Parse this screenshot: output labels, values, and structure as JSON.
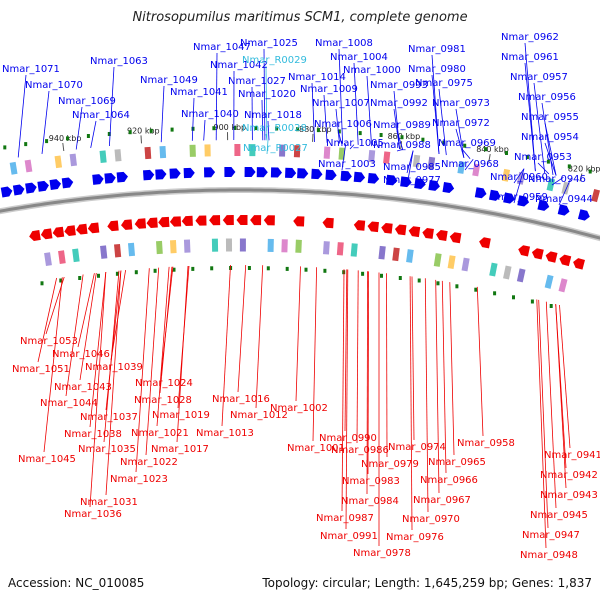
{
  "title": "Nitrosopumilus maritimus SCM1, complete genome",
  "accession_text": "Accession: NC_010085",
  "summary_text": "Topology: circular; Length: 1,645,259 bp; Genes: 1,837",
  "colors": {
    "forward": "#0000ee",
    "reverse": "#ee0000",
    "rna": "#33bbdd",
    "backbone": "#888888",
    "tick": "#117711"
  },
  "kbp_ticks": [
    {
      "label": "940 kbp"
    },
    {
      "label": "920 kbp"
    },
    {
      "label": "900 kbp"
    },
    {
      "label": "880 kbp"
    },
    {
      "label": "860 kbp"
    },
    {
      "label": "840 kbp"
    },
    {
      "label": "820 kbp"
    }
  ],
  "labels_top": [
    {
      "text": "Nmar_1071",
      "kind": "forward"
    },
    {
      "text": "Nmar_1070",
      "kind": "forward"
    },
    {
      "text": "Nmar_1069",
      "kind": "forward"
    },
    {
      "text": "Nmar_1064",
      "kind": "forward"
    },
    {
      "text": "Nmar_1063",
      "kind": "forward"
    },
    {
      "text": "Nmar_1049",
      "kind": "forward"
    },
    {
      "text": "Nmar_1047",
      "kind": "forward"
    },
    {
      "text": "Nmar_1042",
      "kind": "forward"
    },
    {
      "text": "Nmar_1041",
      "kind": "forward"
    },
    {
      "text": "Nmar_1040",
      "kind": "forward"
    },
    {
      "text": "Nmar_1025",
      "kind": "forward"
    },
    {
      "text": "Nmar_R0029",
      "kind": "rna"
    },
    {
      "text": "Nmar_1027",
      "kind": "forward"
    },
    {
      "text": "Nmar_1020",
      "kind": "forward"
    },
    {
      "text": "Nmar_1018",
      "kind": "forward"
    },
    {
      "text": "Nmar_R0028",
      "kind": "rna"
    },
    {
      "text": "Nmar_R0027",
      "kind": "rna"
    },
    {
      "text": "Nmar_1014",
      "kind": "forward"
    },
    {
      "text": "Nmar_1009",
      "kind": "forward"
    },
    {
      "text": "Nmar_1007",
      "kind": "forward"
    },
    {
      "text": "Nmar_1008",
      "kind": "forward"
    },
    {
      "text": "Nmar_1004",
      "kind": "forward"
    },
    {
      "text": "Nmar_1000",
      "kind": "forward"
    },
    {
      "text": "Nmar_1006",
      "kind": "forward"
    },
    {
      "text": "Nmar_1005",
      "kind": "forward"
    },
    {
      "text": "Nmar_1003",
      "kind": "forward"
    },
    {
      "text": "Nmar_0993",
      "kind": "forward"
    },
    {
      "text": "Nmar_0992",
      "kind": "forward"
    },
    {
      "text": "Nmar_0989",
      "kind": "forward"
    },
    {
      "text": "Nmar_0988",
      "kind": "forward"
    },
    {
      "text": "Nmar_0985",
      "kind": "forward"
    },
    {
      "text": "Nmar_0977",
      "kind": "forward"
    },
    {
      "text": "Nmar_0981",
      "kind": "forward"
    },
    {
      "text": "Nmar_0980",
      "kind": "forward"
    },
    {
      "text": "Nmar_0975",
      "kind": "forward"
    },
    {
      "text": "Nmar_0973",
      "kind": "forward"
    },
    {
      "text": "Nmar_0972",
      "kind": "forward"
    },
    {
      "text": "Nmar_0969",
      "kind": "forward"
    },
    {
      "text": "Nmar_0968",
      "kind": "forward"
    },
    {
      "text": "Nmar_0962",
      "kind": "forward"
    },
    {
      "text": "Nmar_0961",
      "kind": "forward"
    },
    {
      "text": "Nmar_0957",
      "kind": "forward"
    },
    {
      "text": "Nmar_0956",
      "kind": "forward"
    },
    {
      "text": "Nmar_0955",
      "kind": "forward"
    },
    {
      "text": "Nmar_0954",
      "kind": "forward"
    },
    {
      "text": "Nmar_0953",
      "kind": "forward"
    },
    {
      "text": "Nmar_0960",
      "kind": "forward"
    },
    {
      "text": "Nmar_0959",
      "kind": "forward"
    },
    {
      "text": "Nmar_0946",
      "kind": "forward"
    },
    {
      "text": "Nmar_0944",
      "kind": "forward"
    }
  ],
  "labels_bottom": [
    {
      "text": "Nmar_1053",
      "kind": "reverse"
    },
    {
      "text": "Nmar_1046",
      "kind": "reverse"
    },
    {
      "text": "Nmar_1051",
      "kind": "reverse"
    },
    {
      "text": "Nmar_1039",
      "kind": "reverse"
    },
    {
      "text": "Nmar_1043",
      "kind": "reverse"
    },
    {
      "text": "Nmar_1044",
      "kind": "reverse"
    },
    {
      "text": "Nmar_1037",
      "kind": "reverse"
    },
    {
      "text": "Nmar_1038",
      "kind": "reverse"
    },
    {
      "text": "Nmar_1035",
      "kind": "reverse"
    },
    {
      "text": "Nmar_1045",
      "kind": "reverse"
    },
    {
      "text": "Nmar_1024",
      "kind": "reverse"
    },
    {
      "text": "Nmar_1028",
      "kind": "reverse"
    },
    {
      "text": "Nmar_1019",
      "kind": "reverse"
    },
    {
      "text": "Nmar_1021",
      "kind": "reverse"
    },
    {
      "text": "Nmar_1017",
      "kind": "reverse"
    },
    {
      "text": "Nmar_1022",
      "kind": "reverse"
    },
    {
      "text": "Nmar_1023",
      "kind": "reverse"
    },
    {
      "text": "Nmar_1031",
      "kind": "reverse"
    },
    {
      "text": "Nmar_1036",
      "kind": "reverse"
    },
    {
      "text": "Nmar_1016",
      "kind": "reverse"
    },
    {
      "text": "Nmar_1012",
      "kind": "reverse"
    },
    {
      "text": "Nmar_1013",
      "kind": "reverse"
    },
    {
      "text": "Nmar_1002",
      "kind": "reverse"
    },
    {
      "text": "Nmar_1001",
      "kind": "reverse"
    },
    {
      "text": "Nmar_0990",
      "kind": "reverse"
    },
    {
      "text": "Nmar_0986",
      "kind": "reverse"
    },
    {
      "text": "Nmar_0979",
      "kind": "reverse"
    },
    {
      "text": "Nmar_0983",
      "kind": "reverse"
    },
    {
      "text": "Nmar_0984",
      "kind": "reverse"
    },
    {
      "text": "Nmar_0987",
      "kind": "reverse"
    },
    {
      "text": "Nmar_0991",
      "kind": "reverse"
    },
    {
      "text": "Nmar_0976",
      "kind": "reverse"
    },
    {
      "text": "Nmar_0978",
      "kind": "reverse"
    },
    {
      "text": "Nmar_0974",
      "kind": "reverse"
    },
    {
      "text": "Nmar_0965",
      "kind": "reverse"
    },
    {
      "text": "Nmar_0966",
      "kind": "reverse"
    },
    {
      "text": "Nmar_0967",
      "kind": "reverse"
    },
    {
      "text": "Nmar_0970",
      "kind": "reverse"
    },
    {
      "text": "Nmar_0958",
      "kind": "reverse"
    },
    {
      "text": "Nmar_0941",
      "kind": "reverse"
    },
    {
      "text": "Nmar_0942",
      "kind": "reverse"
    },
    {
      "text": "Nmar_0943",
      "kind": "reverse"
    },
    {
      "text": "Nmar_0945",
      "kind": "reverse"
    },
    {
      "text": "Nmar_0947",
      "kind": "reverse"
    },
    {
      "text": "Nmar_0948",
      "kind": "reverse"
    }
  ]
}
